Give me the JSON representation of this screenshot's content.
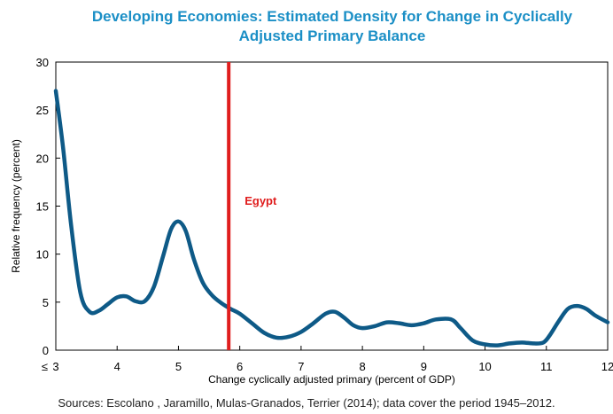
{
  "chart_data": {
    "type": "line",
    "title_lines": [
      "Developing Economies: Estimated Density for Change in Cyclically",
      "Adjusted Primary Balance"
    ],
    "xlabel": "Change cyclically adjusted primary (percent of GDP)",
    "ylabel": "Relative frequency (percent)",
    "xlim": [
      3,
      12
    ],
    "ylim": [
      0,
      30
    ],
    "x_ticks": [
      3,
      4,
      5,
      6,
      7,
      8,
      9,
      10,
      11,
      12
    ],
    "x_tick_labels": [
      "3",
      "4",
      "5",
      "6",
      "7",
      "8",
      "9",
      "10",
      "11",
      "12"
    ],
    "x_first_tick_prefix": "≤",
    "y_ticks": [
      0,
      5,
      10,
      15,
      20,
      25,
      30
    ],
    "y_tick_labels": [
      "0",
      "5",
      "10",
      "15",
      "20",
      "25",
      "30"
    ],
    "grid": false,
    "series": [
      {
        "color": "#0e5a87",
        "x": [
          3.0,
          3.12,
          3.25,
          3.4,
          3.55,
          3.7,
          3.85,
          4.0,
          4.15,
          4.3,
          4.45,
          4.6,
          4.75,
          4.88,
          5.0,
          5.12,
          5.25,
          5.4,
          5.55,
          5.7,
          5.85,
          6.0,
          6.2,
          6.4,
          6.6,
          6.8,
          7.0,
          7.2,
          7.4,
          7.55,
          7.7,
          7.85,
          8.0,
          8.2,
          8.4,
          8.6,
          8.8,
          9.0,
          9.2,
          9.45,
          9.6,
          9.8,
          10.0,
          10.2,
          10.4,
          10.6,
          10.8,
          10.95,
          11.05,
          11.2,
          11.35,
          11.5,
          11.65,
          11.8,
          12.0
        ],
        "y": [
          27.0,
          21.0,
          13.0,
          6.0,
          4.0,
          4.1,
          4.8,
          5.5,
          5.6,
          5.1,
          5.1,
          6.6,
          9.8,
          12.6,
          13.4,
          12.4,
          9.5,
          7.0,
          5.7,
          4.9,
          4.3,
          3.8,
          2.8,
          1.8,
          1.3,
          1.4,
          1.9,
          2.8,
          3.8,
          4.0,
          3.4,
          2.6,
          2.3,
          2.5,
          2.9,
          2.8,
          2.6,
          2.8,
          3.2,
          3.2,
          2.3,
          1.0,
          0.6,
          0.5,
          0.7,
          0.8,
          0.7,
          0.8,
          1.5,
          3.0,
          4.3,
          4.6,
          4.3,
          3.6,
          2.9
        ]
      }
    ],
    "annotations": [
      {
        "text": "Egypt",
        "x": 5.82,
        "y": 15.5,
        "color": "#e01e1e"
      }
    ],
    "reference_lines": [
      {
        "axis": "x",
        "value": 5.82,
        "color": "#e01e1e"
      }
    ]
  },
  "source_text": "Sources: Escolano , Jaramillo, Mulas-Granados, Terrier (2014); data cover the period 1945–2012."
}
